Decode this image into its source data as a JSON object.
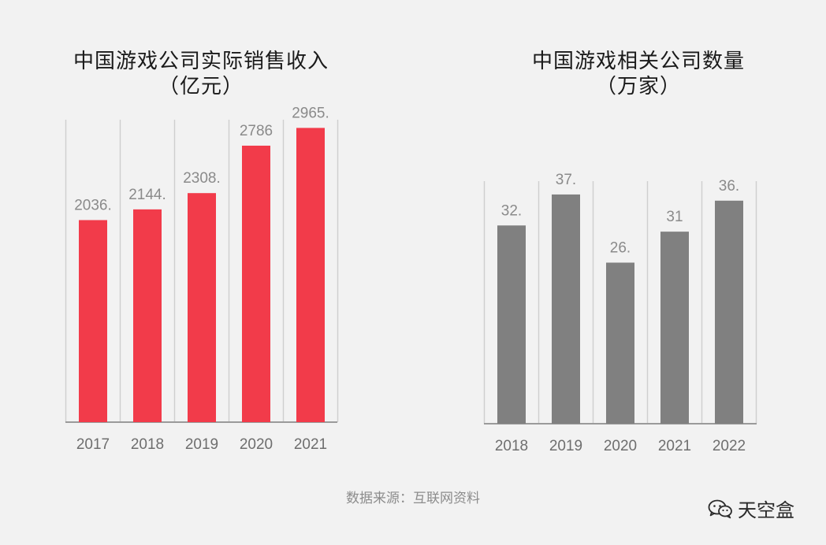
{
  "chart_data": [
    {
      "type": "bar",
      "title": "中国游戏公司实际销售收入\n（亿元）",
      "categories": [
        "2017",
        "2018",
        "2019",
        "2020",
        "2021"
      ],
      "values": [
        2036,
        2144,
        2308,
        2786,
        2965
      ],
      "data_labels": [
        "2036.",
        "2144.",
        "2308.",
        "2786",
        "2965."
      ],
      "color": "#f23b4a",
      "ylim": [
        0,
        3000
      ],
      "grid": "vertical"
    },
    {
      "type": "bar",
      "title": "中国游戏相关公司数量\n（万家）",
      "categories": [
        "2018",
        "2019",
        "2020",
        "2021",
        "2022"
      ],
      "values": [
        32,
        37,
        26,
        31,
        36
      ],
      "data_labels": [
        "32.",
        "37.",
        "26.",
        "31",
        "36."
      ],
      "color": "#808080",
      "ylim": [
        0,
        37.5
      ],
      "grid": "vertical"
    }
  ],
  "source": "数据来源：互联网资料",
  "watermark": "天空盒"
}
